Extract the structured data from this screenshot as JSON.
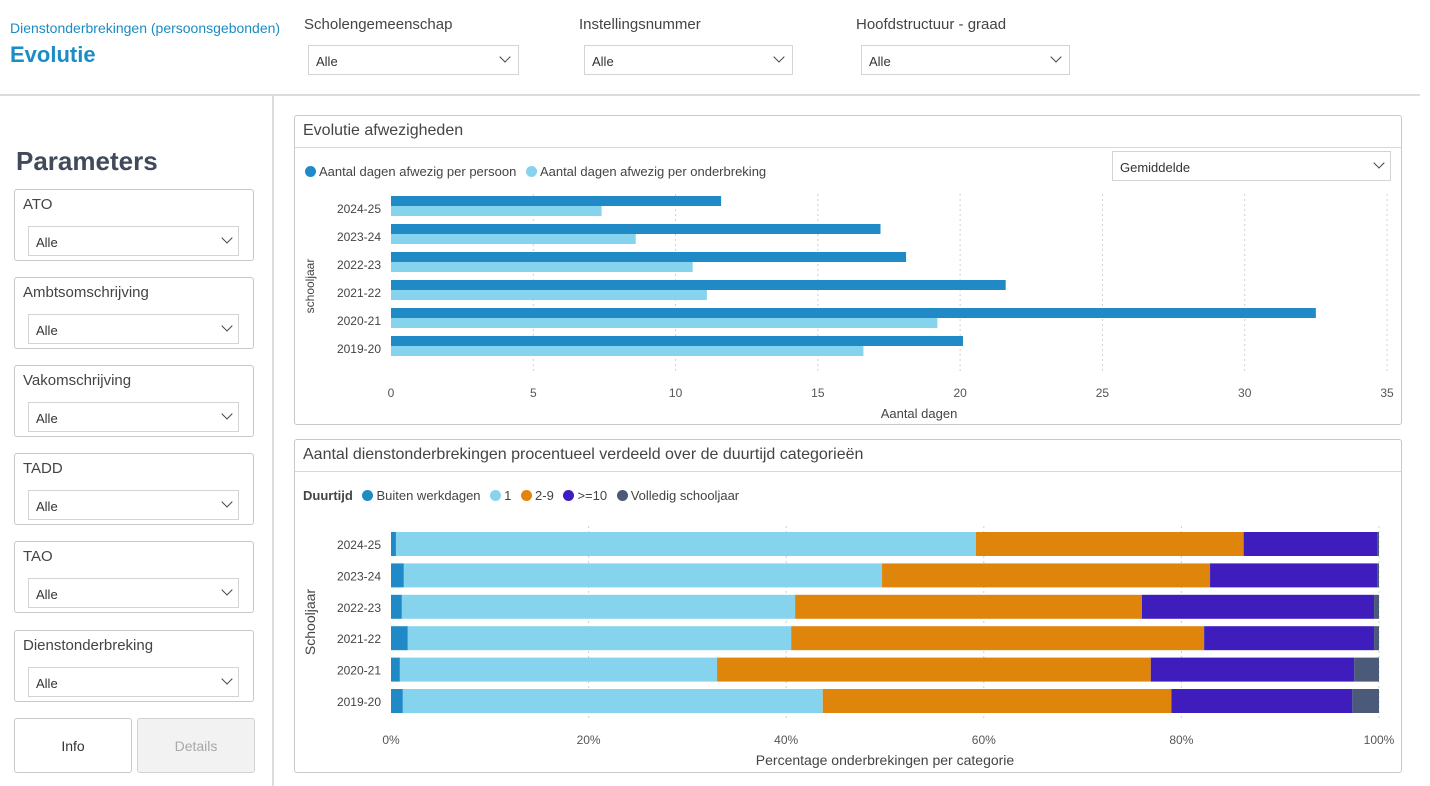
{
  "header": {
    "subtitle": "Dienstonderbrekingen (persoonsgebonden)",
    "title": "Evolutie"
  },
  "top_filters": [
    {
      "label": "Scholengemeenschap",
      "value": "Alle"
    },
    {
      "label": "Instellingsnummer",
      "value": "Alle"
    },
    {
      "label": "Hoofdstructuur - graad",
      "value": "Alle"
    }
  ],
  "parameters": {
    "title": "Parameters",
    "items": [
      {
        "label": "ATO",
        "value": "Alle"
      },
      {
        "label": "Ambtsomschrijving",
        "value": "Alle"
      },
      {
        "label": "Vakomschrijving",
        "value": "Alle"
      },
      {
        "label": "TADD",
        "value": "Alle"
      },
      {
        "label": "TAO",
        "value": "Alle"
      },
      {
        "label": "Dienstonderbreking",
        "value": "Alle"
      }
    ],
    "buttons": {
      "info": "Info",
      "details": "Details"
    }
  },
  "colors": {
    "accent": "#1b8cc5",
    "dark_blue": "#1f8ac6",
    "light_blue": "#86d3ee",
    "orange": "#e0850b",
    "purple": "#3f1dbd",
    "slate": "#4a5a78"
  },
  "chart1_panel": {
    "title": "Evolutie afwezigheden",
    "dropdown_value": "Gemiddelde"
  },
  "chart2_panel": {
    "title": "Aantal dienstonderbrekingen procentueel verdeeld over de duurtijd categorieën"
  },
  "chart_data": [
    {
      "type": "bar",
      "orientation": "horizontal",
      "categories": [
        "2024-25",
        "2023-24",
        "2022-23",
        "2021-22",
        "2020-21",
        "2019-20"
      ],
      "series": [
        {
          "name": "Aantal dagen afwezig per persoon",
          "color": "#1f8ac6",
          "values": [
            11.6,
            17.2,
            18.1,
            21.6,
            32.5,
            20.1
          ]
        },
        {
          "name": "Aantal dagen afwezig per onderbreking",
          "color": "#86d3ee",
          "values": [
            7.4,
            8.6,
            10.6,
            11.1,
            19.2,
            16.6
          ]
        }
      ],
      "xlabel": "Aantal dagen",
      "ylabel": "schooljaar",
      "xlim": [
        0,
        35
      ],
      "xticks": [
        "0",
        "5",
        "10",
        "15",
        "20",
        "25",
        "30",
        "35"
      ],
      "grid": true,
      "legend_position": "top-left"
    },
    {
      "type": "bar",
      "orientation": "horizontal",
      "stacked": "percent",
      "legend_title": "Duurtijd",
      "categories": [
        "2024-25",
        "2023-24",
        "2022-23",
        "2021-22",
        "2020-21",
        "2019-20"
      ],
      "series": [
        {
          "name": "Buiten werkdagen",
          "color": "#1f8ac6",
          "values": [
            0.5,
            1.3,
            1.1,
            1.7,
            0.9,
            1.2
          ]
        },
        {
          "name": "1",
          "color": "#86d3ee",
          "values": [
            58.7,
            48.4,
            39.8,
            38.8,
            32.1,
            42.5
          ]
        },
        {
          "name": "2-9",
          "color": "#e0850b",
          "values": [
            27.1,
            33.2,
            35.1,
            41.8,
            43.9,
            35.3
          ]
        },
        {
          "name": ">=10",
          "color": "#3f1dbd",
          "values": [
            13.5,
            16.9,
            23.5,
            17.2,
            20.6,
            18.3
          ]
        },
        {
          "name": "Volledig schooljaar",
          "color": "#4a5a78",
          "values": [
            0.2,
            0.2,
            0.5,
            0.5,
            2.5,
            2.7
          ]
        }
      ],
      "xlabel": "Percentage onderbrekingen per categorie",
      "ylabel": "Schooljaar",
      "xlim": [
        0,
        100
      ],
      "xticks": [
        "0%",
        "20%",
        "40%",
        "60%",
        "80%",
        "100%"
      ],
      "grid": true,
      "legend_position": "top-left"
    }
  ]
}
